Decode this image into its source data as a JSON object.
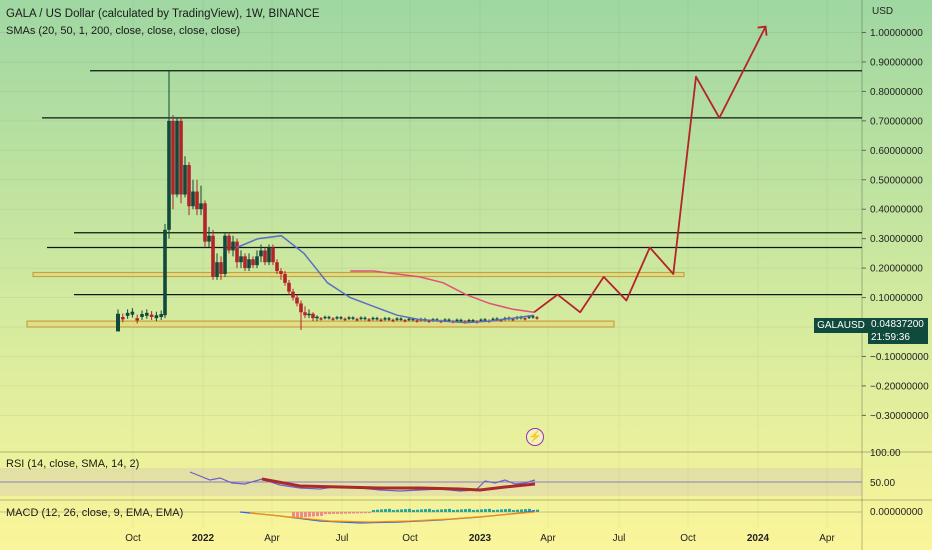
{
  "header": {
    "title": "GALA / US Dollar (calculated by TradingView), 1W, BINANCE",
    "indicator": "SMAs (20, 50, 1, 200, close, close, close, close)"
  },
  "price_axis": {
    "unit": "USD",
    "ticks": [
      "1.00000000",
      "0.90000000",
      "0.80000000",
      "0.70000000",
      "0.60000000",
      "0.50000000",
      "0.40000000",
      "0.30000000",
      "0.20000000",
      "0.10000000",
      "0.00000000",
      "−0.10000000",
      "−0.20000000",
      "−0.30000000"
    ]
  },
  "time_axis": {
    "ticks": [
      "Oct",
      "2022",
      "Apr",
      "Jul",
      "Oct",
      "2023",
      "Apr",
      "Jul",
      "Oct",
      "2024",
      "Apr"
    ]
  },
  "current": {
    "symbol": "GALAUSD",
    "price": "0.04837200",
    "countdown": "21:59:36"
  },
  "rsi": {
    "label": "RSI (14, close, SMA, 14, 2)",
    "ticks": [
      "100.00",
      "50.00"
    ]
  },
  "macd": {
    "label": "MACD (12, 26, close, 9, EMA, EMA)",
    "ticks": [
      "0.00000000"
    ]
  },
  "colors": {
    "bull": "#0f4a3c",
    "bear": "#b5232a",
    "sma_blue": "#5a6fc0",
    "sma_pink": "#e0507a",
    "projection": "#b5232a",
    "zone": "#c9a13f"
  },
  "chart_data": {
    "type": "candlestick",
    "title": "GALA / US Dollar (calculated by TradingView), 1W, BINANCE",
    "ylabel": "USD",
    "ylim": [
      -0.35,
      1.05
    ],
    "horizontal_levels": [
      0.87,
      0.71,
      0.32,
      0.27,
      0.11
    ],
    "zones": [
      [
        0.175,
        0.185
      ],
      [
        0.0,
        0.02
      ]
    ],
    "series": [
      {
        "name": "Price",
        "x": [
          "2021-09",
          "2021-10",
          "2021-11",
          "2021-12",
          "2022-01",
          "2022-02",
          "2022-03",
          "2022-04",
          "2022-05",
          "2022-06",
          "2022-07",
          "2022-08",
          "2022-09",
          "2022-10",
          "2022-11",
          "2022-12",
          "2023-01",
          "2023-02",
          "2023-03"
        ],
        "values": [
          0.04,
          0.05,
          0.7,
          0.55,
          0.3,
          0.25,
          0.28,
          0.21,
          0.1,
          0.04,
          0.04,
          0.04,
          0.03,
          0.03,
          0.02,
          0.015,
          0.035,
          0.045,
          0.048
        ]
      },
      {
        "name": "SMA 20",
        "x": [
          "2022-02",
          "2022-03",
          "2022-04",
          "2022-05",
          "2022-06",
          "2022-07",
          "2022-08",
          "2022-09",
          "2022-10",
          "2022-11",
          "2022-12",
          "2023-01",
          "2023-02",
          "2023-03"
        ],
        "values": [
          0.27,
          0.3,
          0.31,
          0.25,
          0.15,
          0.1,
          0.07,
          0.04,
          0.025,
          0.02,
          0.015,
          0.02,
          0.03,
          0.04
        ]
      },
      {
        "name": "SMA 50",
        "x": [
          "2022-07",
          "2022-08",
          "2022-09",
          "2022-10",
          "2022-11",
          "2022-12",
          "2023-01",
          "2023-02",
          "2023-03"
        ],
        "values": [
          0.19,
          0.19,
          0.18,
          0.17,
          0.15,
          0.11,
          0.08,
          0.06,
          0.05
        ]
      },
      {
        "name": "Projection",
        "x": [
          "2023-03",
          "2023-04",
          "2023-05",
          "2023-06",
          "2023-07",
          "2023-08",
          "2023-09",
          "2023-10",
          "2023-11",
          "2024-01"
        ],
        "values": [
          0.05,
          0.11,
          0.05,
          0.17,
          0.09,
          0.27,
          0.18,
          0.85,
          0.71,
          1.02
        ]
      }
    ]
  }
}
